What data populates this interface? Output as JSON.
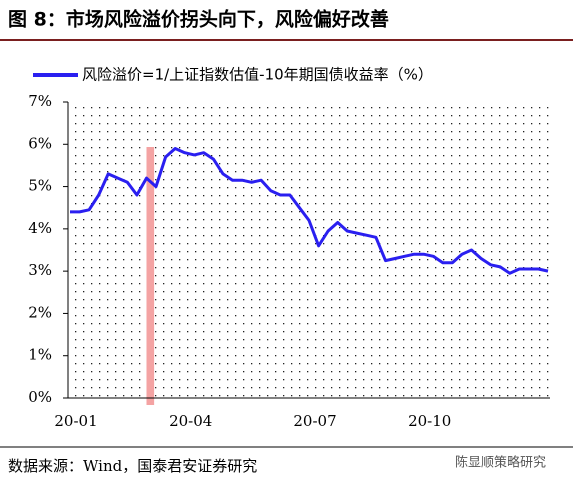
{
  "chart_data": {
    "type": "line",
    "title": "图 8：市场风险溢价拐头向下，风险偏好改善",
    "source": "数据来源：Wind，国泰君安证券研究",
    "watermark": "陈显顺策略研究",
    "categories": [
      "20-01",
      null,
      null,
      null,
      null,
      null,
      null,
      null,
      null,
      null,
      null,
      null,
      "20-04",
      null,
      null,
      null,
      null,
      null,
      null,
      null,
      null,
      null,
      null,
      null,
      null,
      "20-07",
      null,
      null,
      null,
      null,
      null,
      null,
      null,
      null,
      null,
      null,
      null,
      "20-10",
      null,
      null,
      null,
      null,
      null,
      null,
      null,
      null,
      null,
      null,
      null,
      null,
      null
    ],
    "series": [
      {
        "name": "风险溢价=1/上证指数估值-10年期国债收益率（%）",
        "color": "#2a1ff0",
        "values": [
          4.4,
          4.4,
          4.45,
          4.8,
          5.3,
          5.2,
          5.1,
          4.8,
          5.2,
          5.0,
          5.7,
          5.9,
          5.8,
          5.75,
          5.8,
          5.65,
          5.3,
          5.15,
          5.15,
          5.1,
          5.15,
          4.9,
          4.8,
          4.8,
          4.5,
          4.2,
          3.6,
          3.95,
          4.15,
          3.95,
          3.9,
          3.85,
          3.8,
          3.25,
          3.3,
          3.35,
          3.4,
          3.4,
          3.35,
          3.2,
          3.2,
          3.4,
          3.5,
          3.3,
          3.15,
          3.1,
          2.95,
          3.05,
          3.05,
          3.05,
          3.0
        ]
      }
    ],
    "ylim": [
      0,
      7
    ],
    "yticks": [
      {
        "value": 0,
        "label": "0%"
      },
      {
        "value": 1,
        "label": "1%"
      },
      {
        "value": 2,
        "label": "2%"
      },
      {
        "value": 3,
        "label": "3%"
      },
      {
        "value": 4,
        "label": "4%"
      },
      {
        "value": 5,
        "label": "5%"
      },
      {
        "value": 6,
        "label": "6%"
      },
      {
        "value": 7,
        "label": "7%"
      }
    ],
    "highlight": {
      "from": 8.0,
      "to": 8.8,
      "color": "#f4a3a3"
    },
    "legend": "top"
  }
}
